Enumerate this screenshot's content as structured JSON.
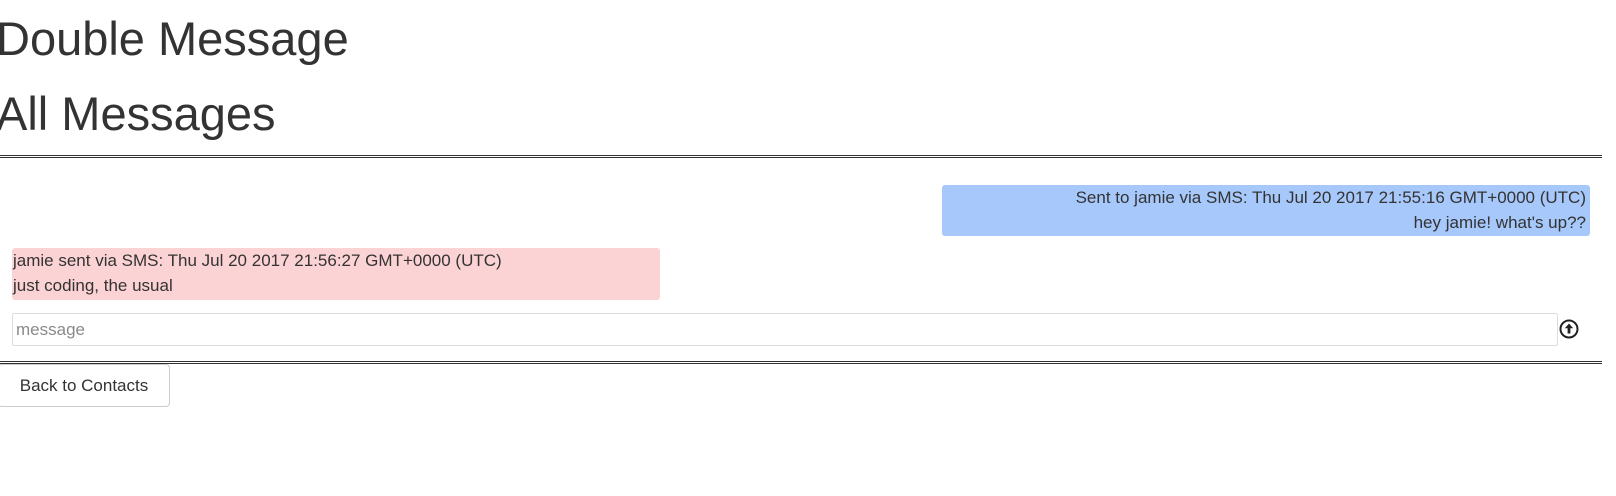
{
  "header": {
    "app_title": "Double Message",
    "section_title": "All Messages"
  },
  "conversation": {
    "messages": [
      {
        "direction": "sent",
        "meta": "Sent to jamie via SMS: Thu Jul 20 2017 21:55:16 GMT+0000 (UTC)",
        "text": "hey jamie! what's up??",
        "color": "#a6c8fb"
      },
      {
        "direction": "received",
        "meta": "jamie sent via SMS: Thu Jul 20 2017 21:56:27 GMT+0000 (UTC)",
        "text": "just coding, the usual",
        "color": "#fcd3d4"
      }
    ]
  },
  "composer": {
    "value": "",
    "placeholder": "message",
    "send_icon": "arrow-up-circle-icon"
  },
  "footer": {
    "back_label": "Back to Contacts"
  }
}
